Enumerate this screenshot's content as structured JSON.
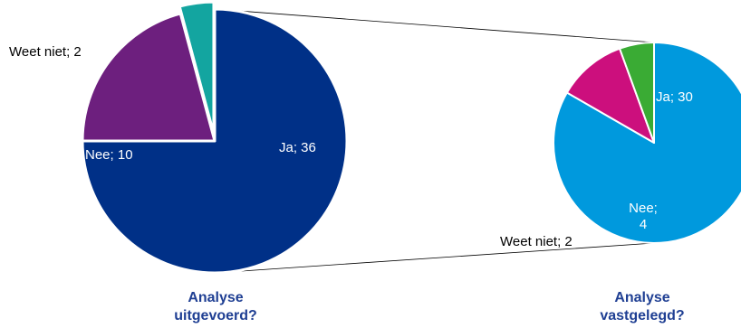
{
  "chart_data": [
    {
      "type": "pie",
      "caption": [
        "Analyse",
        "uitgevoerd?"
      ],
      "slices": [
        {
          "label": "Ja",
          "value": 36,
          "text": "Ja; 36",
          "color": "#003087"
        },
        {
          "label": "Nee",
          "value": 10,
          "text": "Nee; 10",
          "color": "#6d1f7e"
        },
        {
          "label": "Weet niet",
          "value": 2,
          "text": "Weet niet; 2",
          "color": "#13a5a0",
          "exploded": true
        }
      ]
    },
    {
      "type": "pie",
      "caption": [
        "Analyse",
        "vastgelegd?"
      ],
      "slices": [
        {
          "label": "Ja",
          "value": 30,
          "text": "Ja; 30",
          "color": "#0099dd"
        },
        {
          "label": "Nee",
          "value": 4,
          "text_lines": [
            "Nee;",
            "4"
          ],
          "color": "#cc0f7d"
        },
        {
          "label": "Weet niet",
          "value": 2,
          "text": "Weet niet; 2",
          "color": "#3aab34"
        }
      ]
    }
  ]
}
